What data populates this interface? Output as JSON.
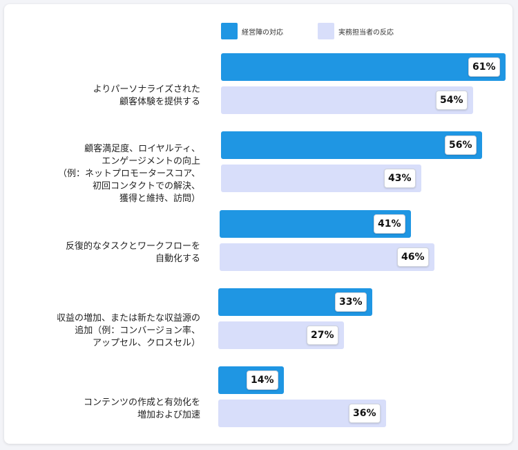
{
  "chart_data": {
    "type": "bar",
    "orientation": "horizontal",
    "categories": [
      "よりパーソナライズされた\n顧客体験を提供する",
      "顧客満足度、ロイヤルティ、\nエンゲージメントの向上\n（例：ネットプロモータースコア、\n初回コンタクトでの解決、\n獲得と維持、訪問）",
      "反復的なタスクとワークフローを\n自動化する",
      "収益の増加、または新たな収益源の\n追加（例：コンバージョン率、\nアップセル、クロスセル）",
      "コンテンツの作成と有効化を\n増加および加速"
    ],
    "series": [
      {
        "name": "経営陣の対応",
        "color": "#1f96e3",
        "values": [
          61,
          56,
          41,
          33,
          14
        ]
      },
      {
        "name": "実務担当者の反応",
        "color": "#d8defa",
        "values": [
          54,
          43,
          46,
          27,
          36
        ]
      }
    ],
    "value_suffix": "%",
    "xlim": [
      0,
      61
    ],
    "legend_position": "top",
    "grid": false
  }
}
